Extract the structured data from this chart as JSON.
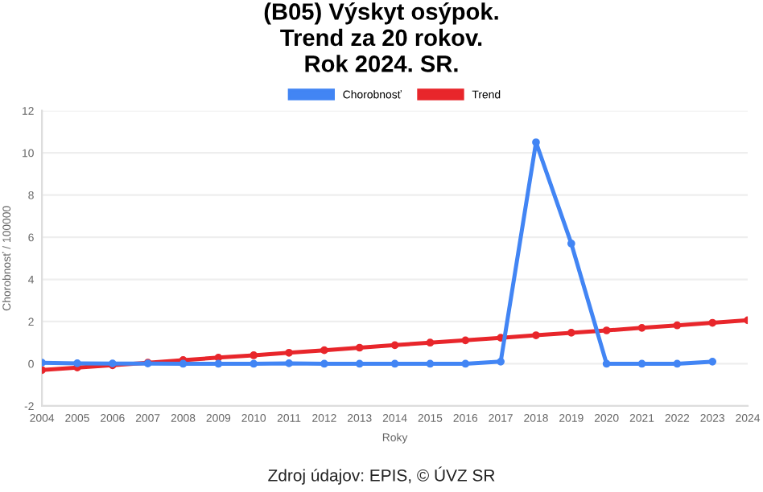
{
  "chart_data": {
    "type": "line",
    "title": "(B05) Výskyt osýpok.\nTrend za 20 rokov.\nRok 2024. SR.",
    "xlabel": "Roky",
    "ylabel": "Chorobnosť / 100000",
    "x": [
      2004,
      2005,
      2006,
      2007,
      2008,
      2009,
      2010,
      2011,
      2012,
      2013,
      2014,
      2015,
      2016,
      2017,
      2018,
      2019,
      2020,
      2021,
      2022,
      2023,
      2024
    ],
    "series": [
      {
        "name": "Chorobnosť",
        "color": "#4285f4",
        "values": [
          0.05,
          0.02,
          0.01,
          0.01,
          0.0,
          0.0,
          0.0,
          0.02,
          0.0,
          0.0,
          0.0,
          0.0,
          0.0,
          0.1,
          10.5,
          5.7,
          0.0,
          0.0,
          0.0,
          0.1,
          null
        ]
      },
      {
        "name": "Trend",
        "color": "#e8262b",
        "values": [
          -0.3,
          -0.18,
          -0.07,
          0.05,
          0.17,
          0.29,
          0.4,
          0.52,
          0.64,
          0.76,
          0.88,
          1.0,
          1.11,
          1.23,
          1.35,
          1.47,
          1.58,
          1.7,
          1.82,
          1.94,
          2.06
        ]
      }
    ],
    "xlim": [
      2004,
      2024
    ],
    "xticks": [
      2004,
      2005,
      2006,
      2007,
      2008,
      2009,
      2010,
      2011,
      2012,
      2013,
      2014,
      2015,
      2016,
      2017,
      2018,
      2019,
      2020,
      2021,
      2022,
      2023,
      2024
    ],
    "ylim": [
      -2,
      12
    ],
    "yticks": [
      -2,
      0,
      2,
      4,
      6,
      8,
      10,
      12
    ],
    "grid": "y",
    "legend": "top",
    "marker": "circle",
    "line_style": "solid",
    "annotations": [
      "Zdroj údajov: EPIS, © ÚVZ SR"
    ]
  }
}
